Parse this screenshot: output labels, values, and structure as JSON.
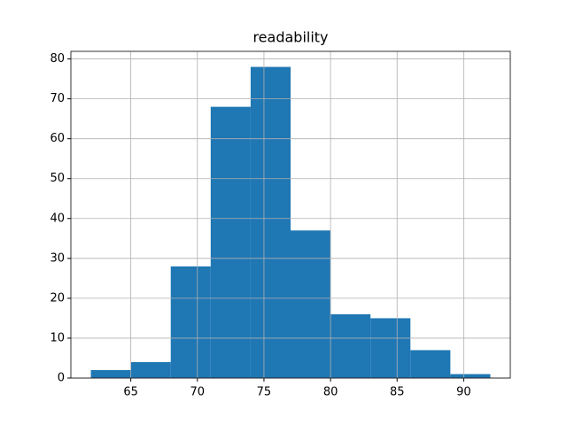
{
  "chart_data": {
    "type": "histogram",
    "title": "readability",
    "bins": [
      62,
      65,
      68,
      71,
      74,
      77,
      80,
      83,
      86,
      89,
      92
    ],
    "values": [
      2,
      4,
      28,
      68,
      78,
      37,
      16,
      15,
      7,
      1
    ],
    "color": "#1f77b4",
    "xlim": [
      60.5,
      93.5
    ],
    "xticks": [
      65,
      70,
      75,
      80,
      85,
      90
    ],
    "ylim": [
      0,
      81.9
    ],
    "yticks": [
      0,
      10,
      20,
      30,
      40,
      50,
      60,
      70,
      80
    ],
    "grid": true
  }
}
